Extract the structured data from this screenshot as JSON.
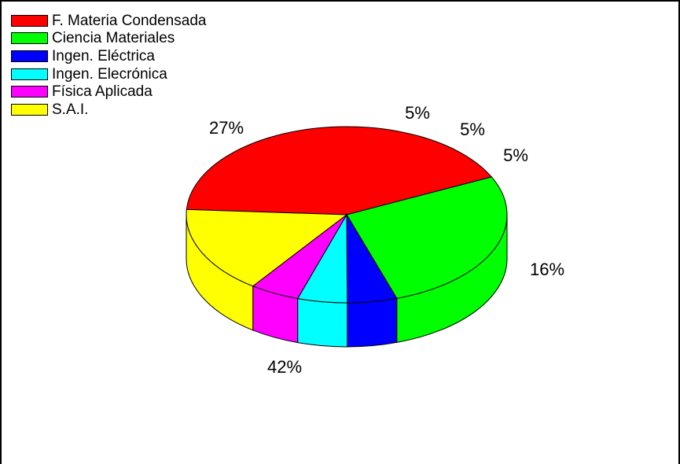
{
  "chart_data": {
    "type": "pie",
    "style": "3d",
    "legend_position": "top-left",
    "slices": [
      {
        "name": "F. Materia Condensada",
        "value": 42,
        "label": "42%",
        "color": "#ff0000"
      },
      {
        "name": "Ciencia Materiales",
        "value": 27,
        "label": "27%",
        "color": "#00ff00"
      },
      {
        "name": "Ingen. Eléctrica",
        "value": 5,
        "label": "5%",
        "color": "#0000ff"
      },
      {
        "name": "Ingen. Elecrónica",
        "value": 5,
        "label": "5%",
        "color": "#00ffff"
      },
      {
        "name": "Física Aplicada",
        "value": 5,
        "label": "5%",
        "color": "#ff00ff"
      },
      {
        "name": "S.A.I.",
        "value": 16,
        "label": "16%",
        "color": "#ffff00"
      }
    ]
  }
}
